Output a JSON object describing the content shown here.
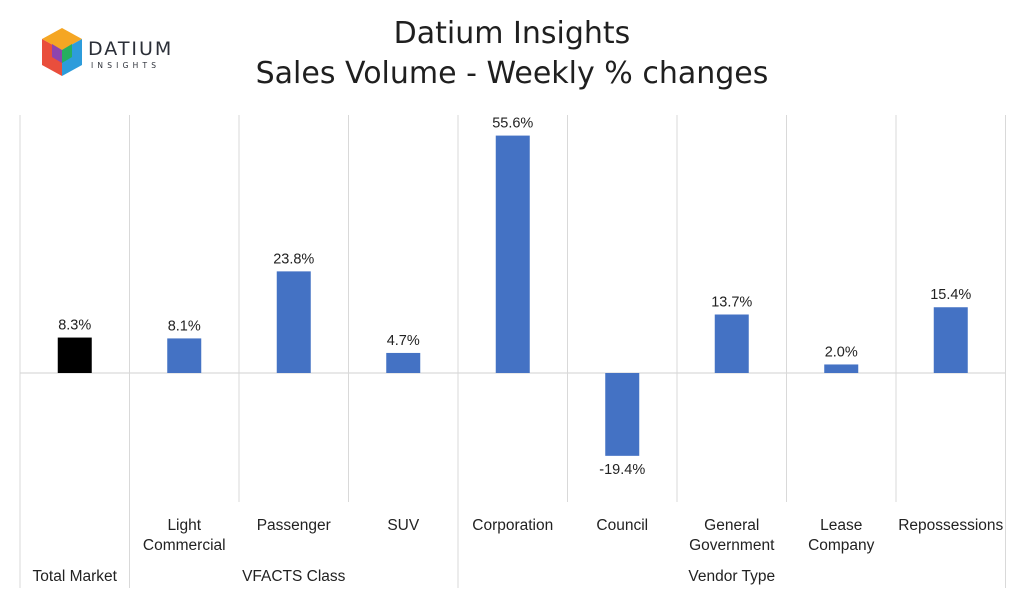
{
  "logo": {
    "name": "DATIUM",
    "sub": "INSIGHTS"
  },
  "colors": {
    "bar": "#4472c4",
    "total_bar": "#000000",
    "grid": "#d9d9d9"
  },
  "chart_data": {
    "type": "bar",
    "title": "Datium Insights",
    "subtitle": "Sales Volume - Weekly % changes",
    "categories": [
      "",
      "Light Commercial",
      "Passenger",
      "SUV",
      "Corporation",
      "Council",
      "General Government",
      "Lease Company",
      "Repossessions"
    ],
    "groups": [
      {
        "label": "Total Market",
        "span": [
          0,
          0
        ]
      },
      {
        "label": "VFACTS Class",
        "span": [
          1,
          3
        ]
      },
      {
        "label": "Vendor Type",
        "span": [
          4,
          8
        ]
      }
    ],
    "values": [
      8.3,
      8.1,
      23.8,
      4.7,
      55.6,
      -19.4,
      13.7,
      2.0,
      15.4
    ],
    "data_labels": [
      "8.3%",
      "8.1%",
      "23.8%",
      "4.7%",
      "55.6%",
      "-19.4%",
      "13.7%",
      "2.0%",
      "15.4%"
    ],
    "highlight_index": 0,
    "ylim": [
      -30,
      60
    ],
    "grid": false
  }
}
